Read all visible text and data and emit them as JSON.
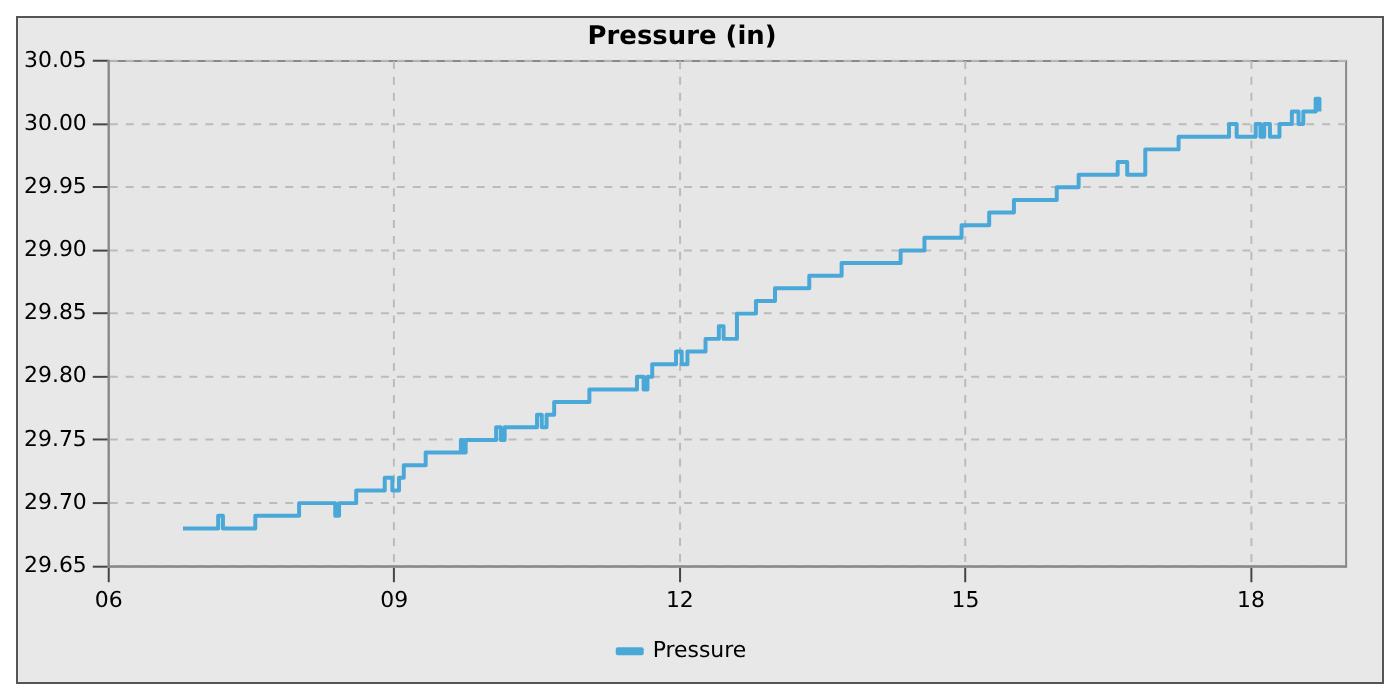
{
  "chart_data": {
    "type": "step",
    "title": "Pressure (in)",
    "x": [
      6.78,
      7.15,
      7.2,
      7.54,
      8.0,
      8.38,
      8.42,
      8.6,
      8.9,
      8.98,
      9.05,
      9.1,
      9.33,
      9.7,
      9.72,
      9.75,
      10.07,
      10.12,
      10.16,
      10.5,
      10.55,
      10.6,
      10.68,
      11.05,
      11.55,
      11.62,
      11.66,
      11.71,
      11.96,
      12.02,
      12.08,
      12.27,
      12.41,
      12.46,
      12.52,
      12.6,
      12.8,
      13.0,
      13.36,
      13.7,
      14.32,
      14.57,
      14.96,
      15.25,
      15.51,
      15.96,
      16.0,
      16.19,
      16.6,
      16.7,
      16.89,
      17.24,
      17.77,
      17.85,
      18.05,
      18.1,
      18.14,
      18.2,
      18.3,
      18.43,
      18.5,
      18.55,
      18.68,
      18.72
    ],
    "series": [
      {
        "name": "Pressure",
        "color": "#4aa8d8",
        "values": [
          29.68,
          29.69,
          29.68,
          29.69,
          29.7,
          29.69,
          29.7,
          29.71,
          29.72,
          29.71,
          29.72,
          29.73,
          29.74,
          29.75,
          29.74,
          29.75,
          29.76,
          29.75,
          29.76,
          29.77,
          29.76,
          29.77,
          29.78,
          29.79,
          29.8,
          29.79,
          29.8,
          29.81,
          29.82,
          29.81,
          29.82,
          29.83,
          29.84,
          29.83,
          29.83,
          29.85,
          29.86,
          29.87,
          29.88,
          29.89,
          29.9,
          29.91,
          29.92,
          29.93,
          29.94,
          29.95,
          29.95,
          29.96,
          29.97,
          29.96,
          29.98,
          29.99,
          30.0,
          29.99,
          30.0,
          29.99,
          30.0,
          29.99,
          30.0,
          30.01,
          30.0,
          30.01,
          30.02,
          30.01
        ]
      }
    ],
    "xlim": [
      6,
      19
    ],
    "xticks": [
      {
        "value": 6,
        "label": "06"
      },
      {
        "value": 9,
        "label": "09"
      },
      {
        "value": 12,
        "label": "12"
      },
      {
        "value": 15,
        "label": "15"
      },
      {
        "value": 18,
        "label": "18"
      }
    ],
    "ylim": [
      29.65,
      30.05
    ],
    "yticks": [
      {
        "value": 29.65,
        "label": "29.65"
      },
      {
        "value": 29.7,
        "label": "29.70"
      },
      {
        "value": 29.75,
        "label": "29.75"
      },
      {
        "value": 29.8,
        "label": "29.80"
      },
      {
        "value": 29.85,
        "label": "29.85"
      },
      {
        "value": 29.9,
        "label": "29.90"
      },
      {
        "value": 29.95,
        "label": "29.95"
      },
      {
        "value": 30.0,
        "label": "30.00"
      },
      {
        "value": 30.05,
        "label": "30.05"
      }
    ],
    "grid": true,
    "legend": "bottom",
    "line_style": "solid",
    "marker": "none"
  }
}
